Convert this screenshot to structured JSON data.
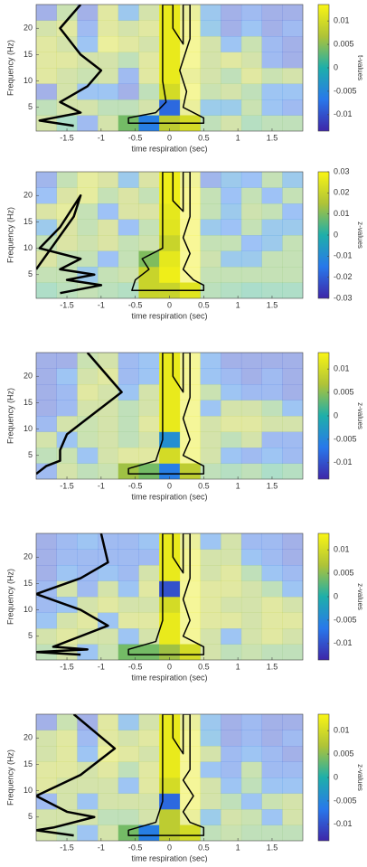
{
  "chart_data": [
    {
      "type": "heatmap",
      "xlabel": "time respiration (sec)",
      "ylabel": "Frequency (Hz)",
      "colorbar_label": "t-values",
      "x": [
        -1.8,
        -1.5,
        -1.2,
        -0.9,
        -0.6,
        -0.3,
        0,
        0.3,
        0.6,
        0.9,
        1.2,
        1.5,
        1.8
      ],
      "y": [
        2,
        5,
        8,
        11,
        14,
        17,
        20,
        23
      ],
      "values": [
        [
          0.006,
          0.002,
          -0.008,
          0.006,
          0.004,
          -0.006,
          0.008,
          0.01,
          0.004,
          0.006,
          0.003,
          0.004,
          0.004
        ],
        [
          0.004,
          0.006,
          0.006,
          0.004,
          0.004,
          0.006,
          -0.008,
          0.01,
          -0.004,
          -0.004,
          0.005,
          -0.006,
          -0.008
        ],
        [
          -0.01,
          0.006,
          -0.006,
          -0.006,
          -0.01,
          0.004,
          0.01,
          0.012,
          0.005,
          0.006,
          0.004,
          -0.006,
          -0.006
        ],
        [
          0.008,
          0.006,
          0.005,
          0.006,
          -0.008,
          0.008,
          0.012,
          0.01,
          0.006,
          0.004,
          0.008,
          0.005,
          0.006
        ],
        [
          0.008,
          0.008,
          0.006,
          0.006,
          0.004,
          0.008,
          0.012,
          0.012,
          0.006,
          0.008,
          0.006,
          -0.008,
          -0.01
        ],
        [
          0.008,
          0.006,
          -0.006,
          0.01,
          0.008,
          0.006,
          0.012,
          0.012,
          0.006,
          -0.006,
          0.005,
          -0.008,
          -0.01
        ],
        [
          0.006,
          0.008,
          -0.008,
          0.008,
          0.006,
          0.008,
          0.012,
          0.012,
          -0.004,
          -0.01,
          -0.006,
          -0.01,
          -0.008
        ],
        [
          -0.01,
          0.005,
          -0.01,
          0.008,
          -0.005,
          0.006,
          0.012,
          0.01,
          -0.005,
          -0.01,
          -0.008,
          -0.01,
          -0.01
        ]
      ],
      "xlim": [
        -1.95,
        1.95
      ],
      "ylim": [
        0.5,
        24.5
      ],
      "xticks": [
        -1.5,
        -1,
        -0.5,
        0,
        0.5,
        1,
        1.5
      ],
      "yticks": [
        5,
        10,
        15,
        20
      ],
      "clim": [
        -0.0135,
        0.0135
      ],
      "cticks": [
        -0.01,
        -0.005,
        0,
        0.005,
        0.01
      ],
      "trace": {
        "x": [
          -1.3,
          -1.6,
          -1.3,
          -1.0,
          -1.2,
          -1.6,
          -1.3,
          -1.9,
          -1.4
        ],
        "y": [
          24.5,
          20,
          15,
          12,
          9,
          6,
          4,
          2.5,
          1.5
        ]
      },
      "outline": {
        "x": [
          -0.1,
          0.05,
          0.05,
          0.2,
          0.2,
          0.3,
          0.3,
          0.15,
          0.25,
          0.2,
          0.35,
          0.5,
          0.5,
          -0.6,
          -0.6,
          -0.2,
          -0.05,
          -0.1
        ],
        "y": [
          24.5,
          24.5,
          20,
          17,
          24.5,
          24.5,
          18,
          12,
          8,
          5,
          4,
          3,
          2,
          2,
          3,
          4,
          6,
          10
        ]
      }
    },
    {
      "type": "heatmap",
      "xlabel": "time respiration (sec)",
      "ylabel": "Frequency (Hz)",
      "colorbar_label": "z-values",
      "x": [
        -1.8,
        -1.5,
        -1.2,
        -0.9,
        -0.6,
        -0.3,
        0,
        0.3,
        0.6,
        0.9,
        1.2,
        1.5,
        1.8
      ],
      "y": [
        2,
        5,
        8,
        11,
        14,
        17,
        20,
        23
      ],
      "values": [
        [
          0.005,
          0.008,
          0.01,
          0.008,
          0.006,
          0.02,
          0.02,
          0.025,
          0.008,
          0.006,
          0.004,
          0.005,
          0.005
        ],
        [
          0.01,
          0.01,
          -0.01,
          0.01,
          0.012,
          0.02,
          0.028,
          0.028,
          0.01,
          0.01,
          0.01,
          0.01,
          0.01
        ],
        [
          0.015,
          0.01,
          0.01,
          -0.015,
          0.01,
          0.01,
          0.026,
          0.028,
          0.012,
          -0.01,
          -0.01,
          0.01,
          0.01
        ],
        [
          0.01,
          0.015,
          0.012,
          0.015,
          0.01,
          0.012,
          0.02,
          0.028,
          0.01,
          0.01,
          -0.015,
          -0.01,
          0.01
        ],
        [
          -0.01,
          0.015,
          0.01,
          0.015,
          -0.015,
          0.01,
          0.025,
          0.028,
          -0.01,
          -0.015,
          0.01,
          -0.01,
          -0.01
        ],
        [
          0.015,
          0.02,
          0.01,
          -0.015,
          0.015,
          0.015,
          0.026,
          0.028,
          0.01,
          -0.01,
          0.012,
          0.01,
          -0.015
        ],
        [
          -0.015,
          0.015,
          0.02,
          0.01,
          0.015,
          0.01,
          0.028,
          0.028,
          0.01,
          -0.015,
          0.01,
          -0.015,
          0.01
        ],
        [
          -0.02,
          0.01,
          0.02,
          0.015,
          -0.01,
          0.015,
          0.028,
          0.025,
          -0.02,
          -0.01,
          -0.015,
          0.01,
          -0.01
        ]
      ],
      "xlim": [
        -1.95,
        1.95
      ],
      "ylim": [
        0.5,
        24.5
      ],
      "xticks": [
        -1.5,
        -1,
        -0.5,
        0,
        0.5,
        1,
        1.5
      ],
      "yticks": [
        5,
        10,
        15,
        20
      ],
      "clim": [
        -0.03,
        0.03
      ],
      "cticks": [
        -0.03,
        -0.02,
        -0.01,
        0,
        0.01,
        0.02,
        0.03
      ],
      "trace": {
        "x": [
          -1.95,
          -1.4,
          -1.3,
          -1.6,
          -1.9,
          -1.3,
          -1.6,
          -1.1,
          -1.5,
          -1.0,
          -1.6
        ],
        "y": [
          6,
          16,
          20,
          14,
          10,
          8,
          6,
          5,
          4,
          3,
          1.5
        ]
      },
      "outline": {
        "x": [
          -0.1,
          0.05,
          0.05,
          0.2,
          0.2,
          0.3,
          0.3,
          0.2,
          0.3,
          0.2,
          0.35,
          0.5,
          0.5,
          -0.55,
          -0.5,
          -0.3,
          -0.4,
          -0.1,
          -0.1
        ],
        "y": [
          24.5,
          24.5,
          19,
          17,
          24.5,
          24.5,
          16,
          12,
          9,
          6,
          4,
          3,
          2,
          2,
          4,
          6,
          8,
          10,
          18
        ]
      }
    },
    {
      "type": "heatmap",
      "xlabel": "time respiration (sec)",
      "ylabel": "Frequency (Hz)",
      "colorbar_label": "z-values",
      "x": [
        -1.8,
        -1.5,
        -1.2,
        -0.9,
        -0.6,
        -0.3,
        0,
        0.3,
        0.6,
        0.9,
        1.2,
        1.5,
        1.8
      ],
      "y": [
        2,
        5,
        8,
        11,
        14,
        17,
        20,
        23
      ],
      "values": [
        [
          -0.008,
          0.006,
          0.004,
          0.005,
          0.006,
          0.004,
          -0.006,
          0.008,
          0.004,
          0.003,
          0.004,
          0.002,
          0.003
        ],
        [
          0.004,
          0.005,
          -0.006,
          0.006,
          0.008,
          0.008,
          0.01,
          0.012,
          0.006,
          -0.006,
          -0.008,
          -0.006,
          -0.008
        ],
        [
          0.006,
          -0.006,
          0.005,
          0.006,
          0.004,
          0.006,
          -0.004,
          0.012,
          0.006,
          0.004,
          0.006,
          -0.008,
          -0.008
        ],
        [
          -0.008,
          0.006,
          0.005,
          0.006,
          0.004,
          0.008,
          0.012,
          0.012,
          0.006,
          0.008,
          0.008,
          0.006,
          0.006
        ],
        [
          -0.01,
          -0.008,
          0.006,
          0.006,
          0.004,
          0.006,
          0.012,
          0.012,
          -0.006,
          0.006,
          0.006,
          0.004,
          -0.006
        ],
        [
          -0.01,
          -0.008,
          0.008,
          0.006,
          -0.006,
          0.006,
          0.012,
          0.012,
          0.005,
          -0.006,
          -0.008,
          -0.008,
          -0.01
        ],
        [
          -0.01,
          -0.006,
          0.006,
          0.008,
          -0.008,
          -0.006,
          0.012,
          0.012,
          -0.006,
          -0.008,
          -0.01,
          -0.008,
          -0.01
        ],
        [
          -0.01,
          -0.01,
          0.005,
          0.006,
          -0.008,
          -0.006,
          0.012,
          0.012,
          -0.006,
          -0.01,
          -0.01,
          -0.01,
          -0.01
        ]
      ],
      "xlim": [
        -1.95,
        1.95
      ],
      "ylim": [
        0.5,
        24.5
      ],
      "xticks": [
        -1.5,
        -1,
        -0.5,
        0,
        0.5,
        1,
        1.5
      ],
      "yticks": [
        5,
        10,
        15,
        20
      ],
      "clim": [
        -0.0135,
        0.0135
      ],
      "cticks": [
        -0.01,
        -0.005,
        0,
        0.005,
        0.01
      ],
      "trace": {
        "x": [
          -1.2,
          -0.7,
          -1.2,
          -1.5,
          -1.6,
          -1.6,
          -1.8,
          -1.95
        ],
        "y": [
          24.5,
          17,
          12,
          9,
          6,
          4,
          3,
          1.5
        ]
      },
      "outline": {
        "x": [
          -0.1,
          0.05,
          0.05,
          0.2,
          0.2,
          0.3,
          0.3,
          0.2,
          0.3,
          0.2,
          0.35,
          0.5,
          0.5,
          -0.6,
          -0.6,
          -0.2,
          -0.1,
          -0.1
        ],
        "y": [
          24.5,
          24.5,
          20,
          17,
          24.5,
          24.5,
          16,
          12,
          8,
          5,
          4,
          3,
          1.5,
          1.5,
          2.5,
          4,
          8,
          14
        ]
      }
    },
    {
      "type": "heatmap",
      "xlabel": "time respiration (sec)",
      "ylabel": "Frequency (Hz)",
      "colorbar_label": "z-values",
      "x": [
        -1.8,
        -1.5,
        -1.2,
        -0.9,
        -0.6,
        -0.3,
        0,
        0.3,
        0.6,
        0.9,
        1.2,
        1.5,
        1.8
      ],
      "y": [
        2,
        5,
        8,
        11,
        14,
        17,
        20,
        23
      ],
      "values": [
        [
          0.004,
          0.006,
          -0.006,
          0.005,
          0.004,
          0.004,
          0.006,
          0.01,
          0.006,
          0.004,
          0.005,
          0.004,
          0.004
        ],
        [
          0.006,
          0.008,
          0.006,
          0.006,
          -0.006,
          0.006,
          0.012,
          0.012,
          0.006,
          -0.006,
          0.006,
          0.008,
          0.006
        ],
        [
          -0.006,
          0.006,
          0.008,
          -0.006,
          0.008,
          0.008,
          0.012,
          0.012,
          0.008,
          0.008,
          0.006,
          0.008,
          0.008
        ],
        [
          -0.008,
          -0.006,
          0.006,
          0.008,
          0.006,
          0.006,
          0.01,
          0.012,
          0.008,
          0.006,
          0.006,
          0.008,
          0.006
        ],
        [
          -0.008,
          0.006,
          -0.008,
          0.006,
          -0.006,
          0.008,
          -0.01,
          0.012,
          0.008,
          0.008,
          0.006,
          0.004,
          -0.006
        ],
        [
          -0.01,
          -0.006,
          -0.008,
          -0.006,
          -0.008,
          0.006,
          0.012,
          0.012,
          0.006,
          0.008,
          0.004,
          -0.006,
          -0.008
        ],
        [
          -0.01,
          -0.008,
          -0.008,
          -0.008,
          -0.008,
          -0.008,
          0.012,
          0.012,
          0.006,
          0.006,
          -0.006,
          -0.008,
          -0.01
        ],
        [
          -0.01,
          -0.008,
          -0.006,
          -0.008,
          -0.008,
          -0.006,
          0.012,
          0.01,
          -0.006,
          0.006,
          -0.008,
          -0.008,
          -0.01
        ]
      ],
      "xlim": [
        -1.95,
        1.95
      ],
      "ylim": [
        0.5,
        24.5
      ],
      "xticks": [
        -1.5,
        -1,
        -0.5,
        0,
        0.5,
        1,
        1.5
      ],
      "yticks": [
        5,
        10,
        15,
        20
      ],
      "clim": [
        -0.0135,
        0.0135
      ],
      "cticks": [
        -0.01,
        -0.005,
        0,
        0.005,
        0.01
      ],
      "trace": {
        "x": [
          -1.0,
          -0.9,
          -1.3,
          -1.95,
          -1.3,
          -0.9,
          -1.3,
          -1.7,
          -1.2,
          -1.95,
          -1.3
        ],
        "y": [
          24.5,
          19,
          16,
          13,
          10,
          7,
          5,
          3,
          2.5,
          2,
          1.5
        ]
      },
      "outline": {
        "x": [
          -0.1,
          0.05,
          0.05,
          0.2,
          0.2,
          0.3,
          0.3,
          0.2,
          0.3,
          0.2,
          0.35,
          0.5,
          0.5,
          -0.6,
          -0.6,
          -0.2,
          -0.1,
          -0.1
        ],
        "y": [
          24.5,
          24.5,
          20,
          17,
          24.5,
          24.5,
          16,
          12,
          8,
          5,
          4,
          3,
          1.5,
          1.5,
          2.5,
          4,
          8,
          14
        ]
      }
    },
    {
      "type": "heatmap",
      "xlabel": "time respiration (sec)",
      "ylabel": "Frequency (Hz)",
      "colorbar_label": "z-values",
      "x": [
        -1.8,
        -1.5,
        -1.2,
        -0.9,
        -0.6,
        -0.3,
        0,
        0.3,
        0.6,
        0.9,
        1.2,
        1.5,
        1.8
      ],
      "y": [
        2,
        5,
        8,
        11,
        14,
        17,
        20,
        23
      ],
      "values": [
        [
          0.006,
          0.004,
          -0.006,
          0.006,
          0.004,
          -0.006,
          0.008,
          0.01,
          0.004,
          0.005,
          0.004,
          0.004,
          0.004
        ],
        [
          0.006,
          0.006,
          0.006,
          0.004,
          0.004,
          0.006,
          0.008,
          0.01,
          -0.004,
          0.006,
          0.005,
          -0.006,
          0.006
        ],
        [
          -0.008,
          0.006,
          -0.006,
          0.006,
          0.006,
          0.006,
          -0.008,
          0.012,
          0.006,
          0.004,
          -0.006,
          0.005,
          0.006
        ],
        [
          0.008,
          0.006,
          0.006,
          0.006,
          -0.006,
          0.008,
          0.01,
          0.012,
          0.006,
          -0.006,
          0.004,
          -0.006,
          -0.006
        ],
        [
          0.008,
          0.008,
          0.006,
          0.008,
          0.004,
          0.008,
          0.012,
          0.012,
          -0.006,
          -0.008,
          0.005,
          -0.008,
          -0.008
        ],
        [
          0.006,
          0.008,
          -0.006,
          0.01,
          0.008,
          0.006,
          0.012,
          0.012,
          0.006,
          -0.008,
          -0.006,
          -0.008,
          -0.01
        ],
        [
          0.006,
          0.008,
          -0.008,
          0.008,
          0.006,
          0.008,
          0.012,
          0.012,
          -0.004,
          -0.01,
          -0.008,
          -0.01,
          -0.008
        ],
        [
          -0.01,
          0.005,
          -0.01,
          0.008,
          -0.005,
          0.006,
          0.012,
          0.01,
          -0.005,
          -0.01,
          -0.008,
          -0.01,
          -0.01
        ]
      ],
      "xlim": [
        -1.95,
        1.95
      ],
      "ylim": [
        0.5,
        24.5
      ],
      "xticks": [
        -1.5,
        -1,
        -0.5,
        0,
        0.5,
        1,
        1.5
      ],
      "yticks": [
        5,
        10,
        15,
        20
      ],
      "clim": [
        -0.0135,
        0.0135
      ],
      "cticks": [
        -0.01,
        -0.005,
        0,
        0.005,
        0.01
      ],
      "trace": {
        "x": [
          -1.4,
          -0.8,
          -1.3,
          -1.95,
          -1.5,
          -1.1,
          -1.7,
          -1.95,
          -1.4
        ],
        "y": [
          24.5,
          18,
          13,
          9,
          6,
          5,
          3,
          2.5,
          1.5
        ]
      },
      "outline": {
        "x": [
          -0.1,
          0.05,
          0.05,
          0.2,
          0.2,
          0.3,
          0.3,
          0.2,
          0.35,
          0.2,
          0.3,
          0.5,
          0.5,
          -0.6,
          -0.6,
          -0.2,
          -0.1,
          -0.1
        ],
        "y": [
          24.5,
          24.5,
          20,
          17,
          24.5,
          24.5,
          14,
          12,
          9,
          6,
          4,
          3,
          1.5,
          1.5,
          2.5,
          4,
          8,
          14
        ]
      }
    }
  ]
}
